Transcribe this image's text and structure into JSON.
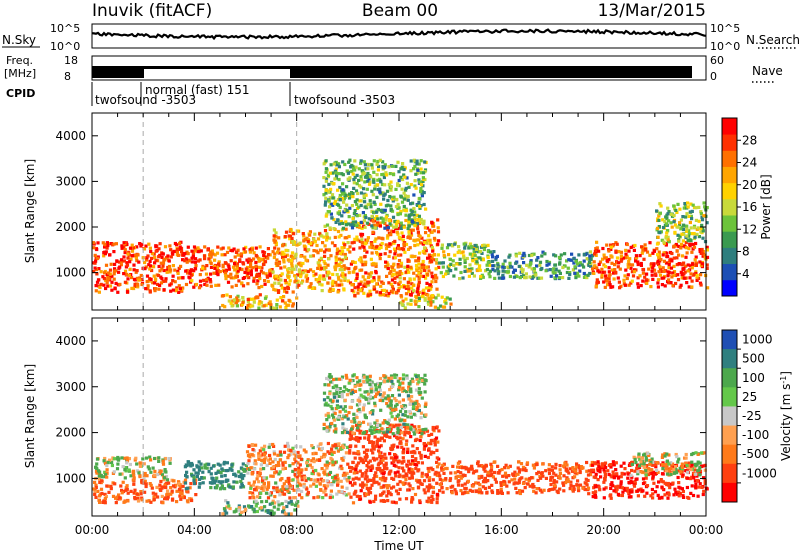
{
  "header": {
    "station": "Inuvik (fitACF)",
    "beam": "Beam 00",
    "date": "13/Mar/2015"
  },
  "status_panels": {
    "nsky_label": "N.Sky",
    "nsky_ticks": [
      "10^5",
      "10^0"
    ],
    "nsearch_label": "N.Search",
    "nsearch_ticks": [
      "10^5",
      "10^0"
    ],
    "freq_label": "Freq.",
    "freq_unit": "[MHz]",
    "freq_ticks": [
      "18",
      "8"
    ],
    "nave_label": "Nave",
    "nave_ticks": [
      "60",
      "0"
    ],
    "cpid_label": "CPID",
    "cpid_segments": [
      {
        "label": "twofsound -3503",
        "start_h": 0,
        "end_h": 2
      },
      {
        "label": "normal (fast) 151",
        "start_h": 2,
        "end_h": 8
      },
      {
        "label": "twofsound -3503",
        "start_h": 8,
        "end_h": 24
      }
    ],
    "mode_changes_h": [
      2,
      8
    ]
  },
  "chart_data": [
    {
      "type": "heatmap",
      "name": "power-panel",
      "ylabel": "Slant Range [km]",
      "xlim": [
        0,
        24
      ],
      "ylim": [
        180,
        4500
      ],
      "yticks": [
        "1000",
        "2000",
        "3000",
        "4000"
      ],
      "colorbar": {
        "label": "Power [dB]",
        "range": [
          0,
          32
        ],
        "ticks": [
          "4",
          "8",
          "12",
          "16",
          "20",
          "24",
          "28"
        ],
        "colors": [
          "#0000ff",
          "#1c4fb5",
          "#2e7e7e",
          "#3a9a50",
          "#6cc33a",
          "#c8d93a",
          "#ffd200",
          "#ffa500",
          "#ff7000",
          "#ff3000",
          "#ff0000"
        ]
      },
      "regions": [
        {
          "t": [
            0.0,
            3.5
          ],
          "r": [
            600,
            1700
          ],
          "level": 28
        },
        {
          "t": [
            3.5,
            7.0
          ],
          "r": [
            700,
            1600
          ],
          "level": 27
        },
        {
          "t": [
            7.0,
            10.0
          ],
          "r": [
            600,
            2000
          ],
          "level": 22
        },
        {
          "t": [
            10.0,
            13.5
          ],
          "r": [
            500,
            2200
          ],
          "level": 24
        },
        {
          "t": [
            13.5,
            15.5
          ],
          "r": [
            900,
            1700
          ],
          "level": 14
        },
        {
          "t": [
            15.5,
            19.5
          ],
          "r": [
            900,
            1500
          ],
          "level": 10
        },
        {
          "t": [
            19.5,
            24.0
          ],
          "r": [
            700,
            1700
          ],
          "level": 27
        },
        {
          "t": [
            5.0,
            8.0
          ],
          "r": [
            250,
            550
          ],
          "level": 20
        },
        {
          "t": [
            12.0,
            14.0
          ],
          "r": [
            250,
            500
          ],
          "level": 18
        },
        {
          "t": [
            9.0,
            13.0
          ],
          "r": [
            2000,
            3500
          ],
          "level": 12
        },
        {
          "t": [
            22.0,
            24.0
          ],
          "r": [
            1700,
            2600
          ],
          "level": 14
        }
      ]
    },
    {
      "type": "heatmap",
      "name": "velocity-panel",
      "ylabel": "Slant Range [km]",
      "xlabel": "Time UT",
      "xlim": [
        0,
        24
      ],
      "ylim": [
        180,
        4500
      ],
      "xticks": [
        "00:00",
        "04:00",
        "08:00",
        "12:00",
        "16:00",
        "20:00",
        "00:00"
      ],
      "yticks": [
        "1000",
        "2000",
        "3000",
        "4000"
      ],
      "colorbar": {
        "label": "Velocity [m s^-1]",
        "ticks": [
          "1000",
          "500",
          "100",
          "25",
          "-25",
          "-100",
          "-500",
          "-1000"
        ],
        "colors": [
          "#1f4fb4",
          "#2f7f7f",
          "#4ca84c",
          "#64c84a",
          "#c8c8c8",
          "#ffa050",
          "#ff7a1a",
          "#ff4010",
          "#ff0000"
        ]
      },
      "regions": [
        {
          "t": [
            0.0,
            3.0
          ],
          "r": [
            1000,
            1500
          ],
          "velocity": 0
        },
        {
          "t": [
            0.0,
            4.0
          ],
          "r": [
            500,
            1000
          ],
          "velocity": -300
        },
        {
          "t": [
            3.5,
            6.0
          ],
          "r": [
            800,
            1400
          ],
          "velocity": 400
        },
        {
          "t": [
            6.0,
            10.0
          ],
          "r": [
            600,
            1800
          ],
          "velocity": -150
        },
        {
          "t": [
            10.0,
            13.5
          ],
          "r": [
            500,
            2200
          ],
          "velocity": -500
        },
        {
          "t": [
            13.5,
            19.5
          ],
          "r": [
            700,
            1400
          ],
          "velocity": -400
        },
        {
          "t": [
            19.5,
            24.0
          ],
          "r": [
            600,
            1400
          ],
          "velocity": -700
        },
        {
          "t": [
            21.0,
            24.0
          ],
          "r": [
            1100,
            1600
          ],
          "velocity": 0
        },
        {
          "t": [
            5.0,
            8.0
          ],
          "r": [
            250,
            550
          ],
          "velocity": 150
        },
        {
          "t": [
            9.0,
            13.0
          ],
          "r": [
            2000,
            3300
          ],
          "velocity": 80
        }
      ]
    }
  ]
}
